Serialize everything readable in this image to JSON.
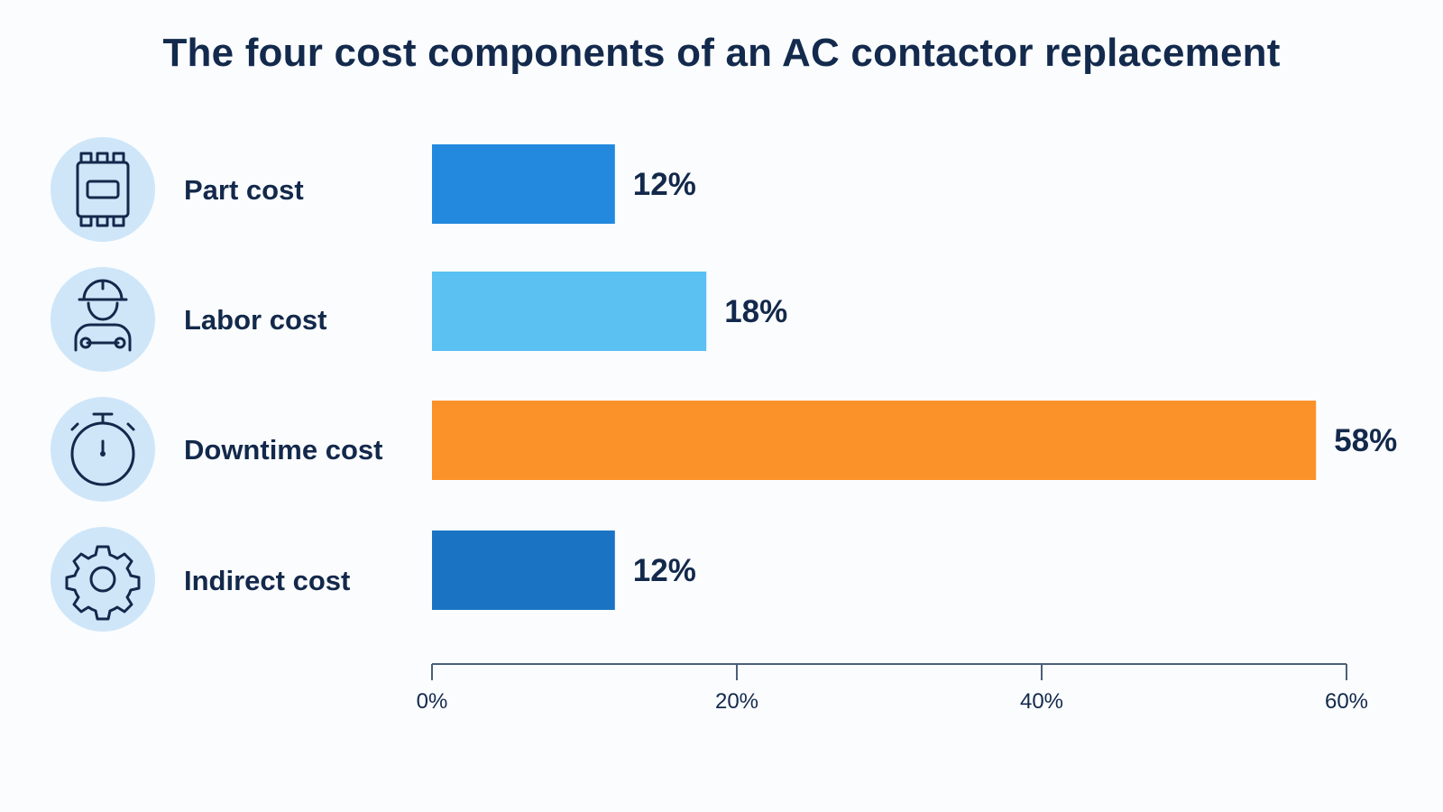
{
  "chart_data": {
    "type": "bar",
    "orientation": "horizontal",
    "title": "The four cost components of an AC contactor replacement",
    "categories": [
      "Part cost",
      "Labor cost",
      "Downtime cost",
      "Indirect cost"
    ],
    "values": [
      12,
      18,
      58,
      12
    ],
    "value_labels": [
      "12%",
      "18%",
      "58%",
      "12%"
    ],
    "colors": [
      "#2289df",
      "#5bc0f2",
      "#fb9129",
      "#1b74c3"
    ],
    "icons": [
      "contactor-icon",
      "worker-icon",
      "stopwatch-icon",
      "gear-icon"
    ],
    "xlim": [
      0,
      60
    ],
    "xticks": [
      0,
      20,
      40,
      60
    ],
    "xtick_labels": [
      "0%",
      "20%",
      "40%",
      "60%"
    ],
    "xlabel": "",
    "ylabel": "",
    "grid": false,
    "legend": "none"
  }
}
